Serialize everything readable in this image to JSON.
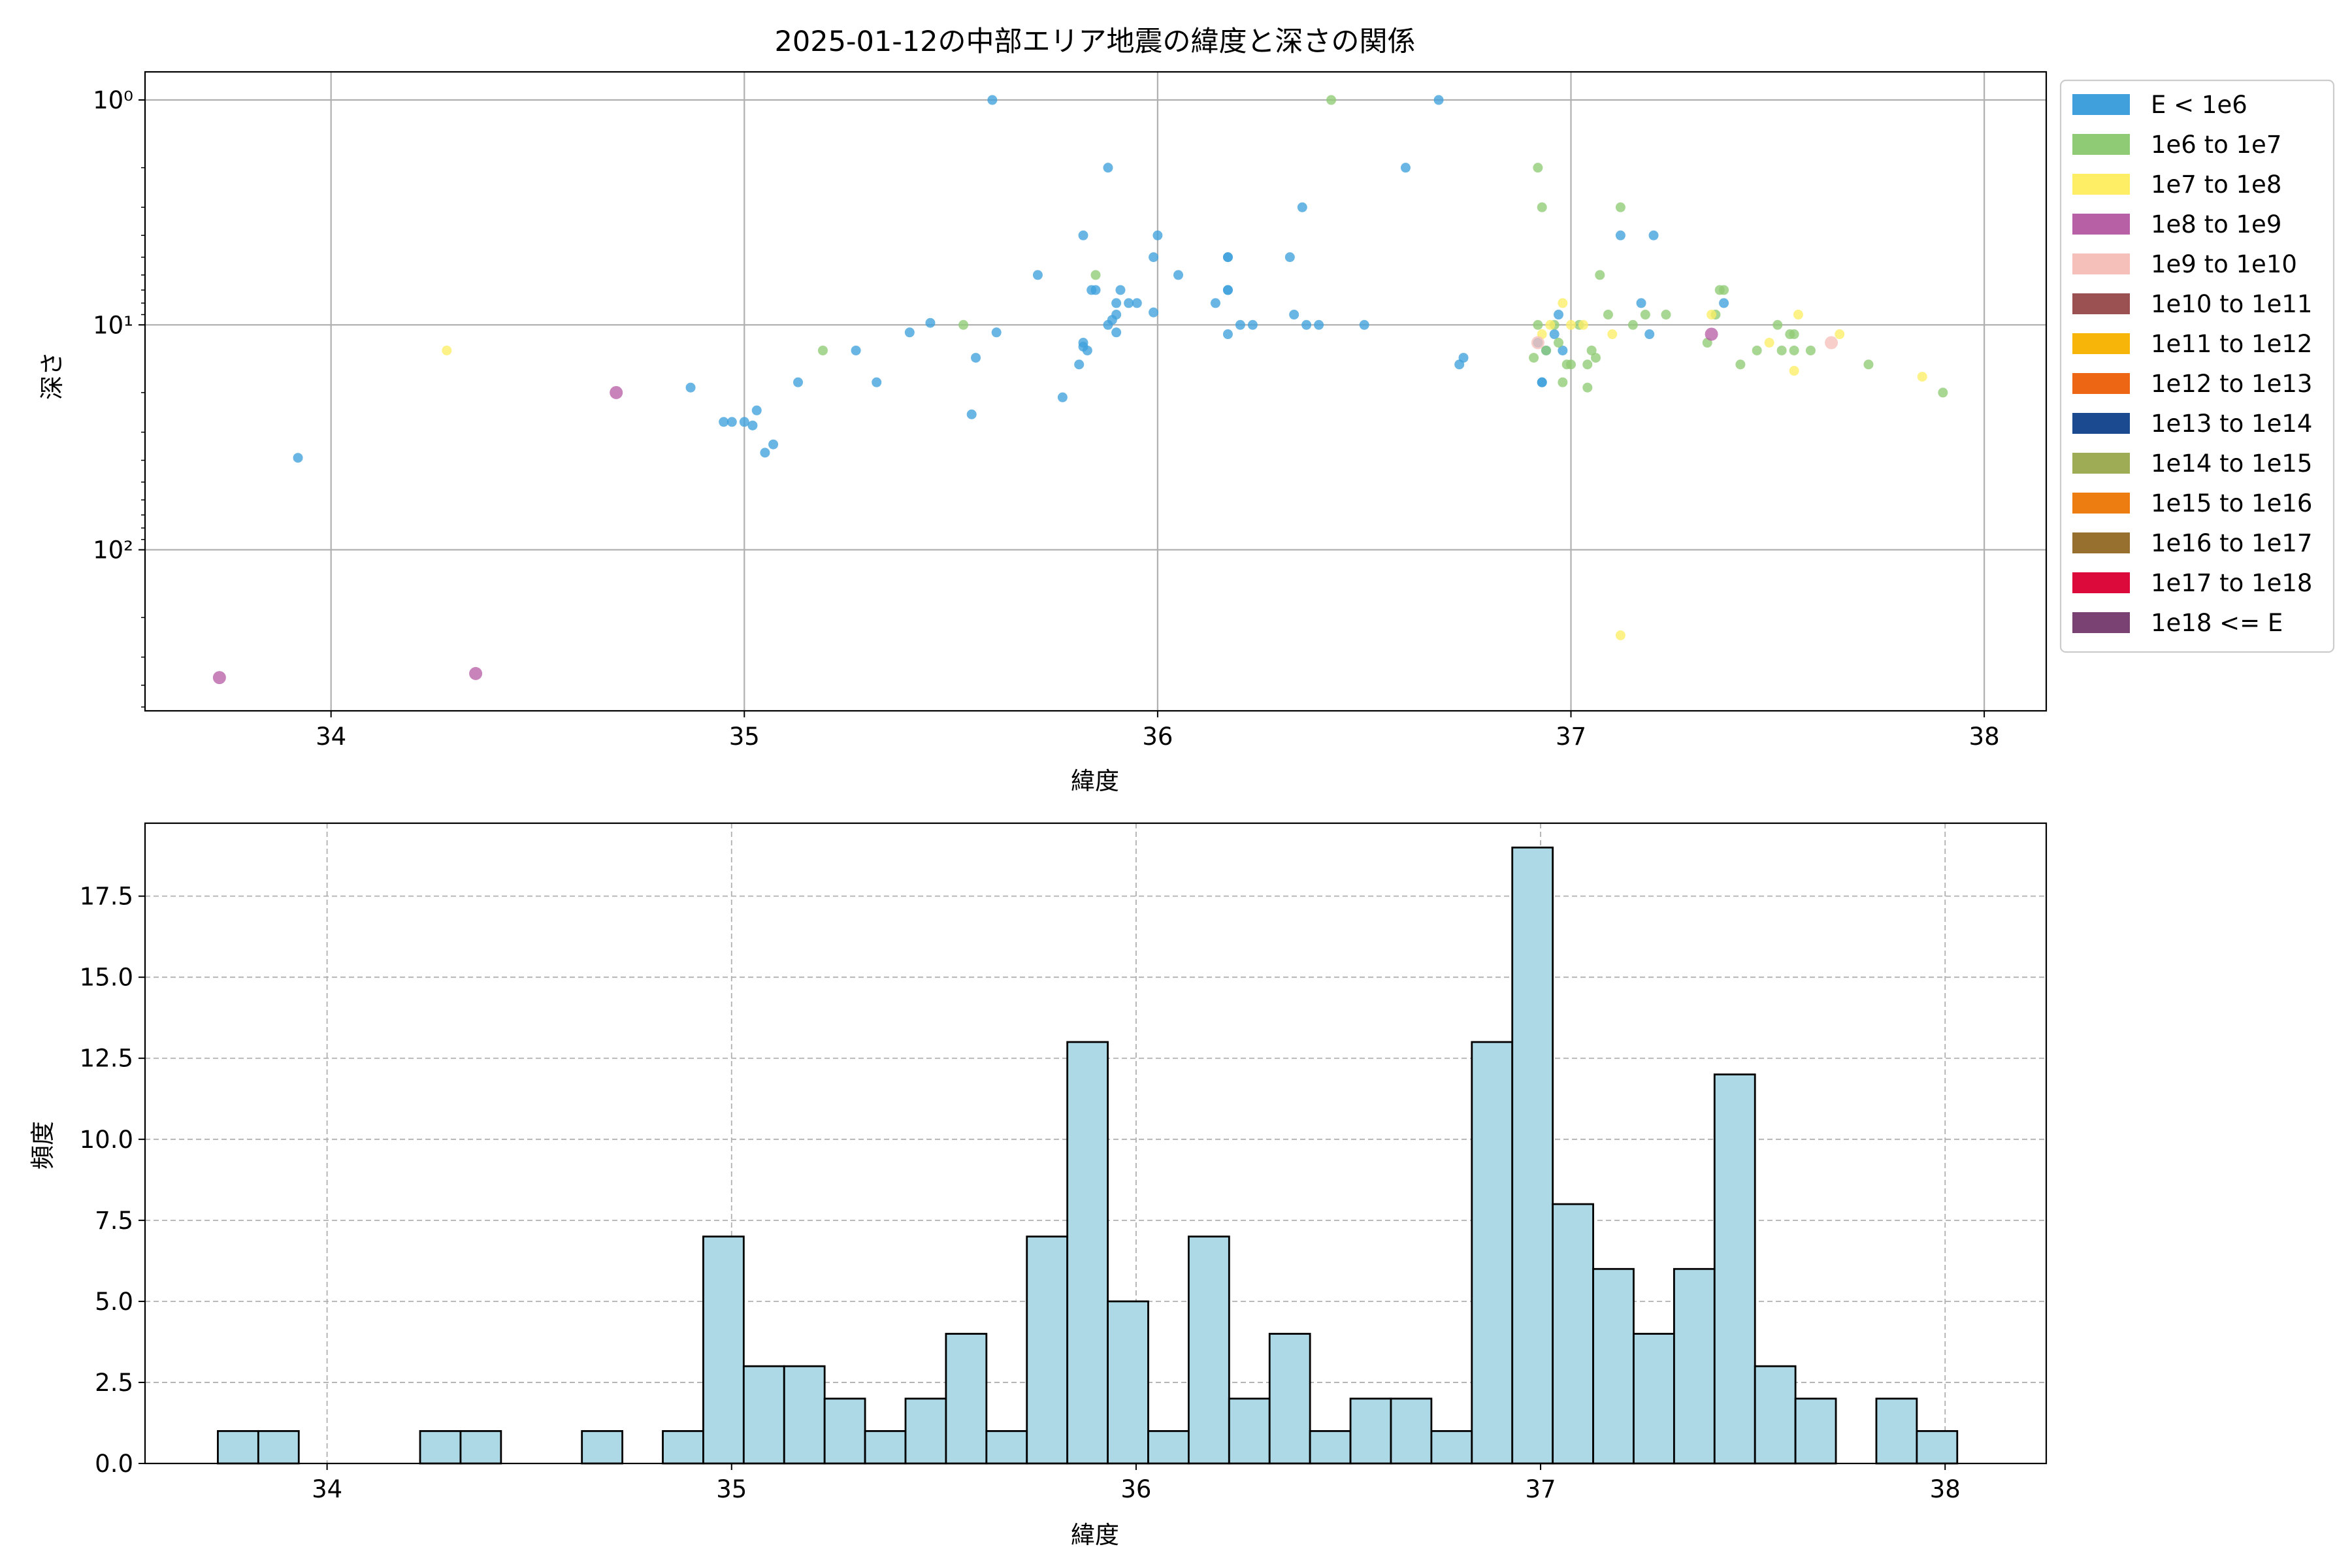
{
  "figure": {
    "title": "2025-01-12の中部エリア地震の緯度と深さの関係"
  },
  "colors": {
    "hist_fill": "#add8e6",
    "hist_edge": "#000000",
    "grid": "#b0b0b0"
  },
  "legend": [
    {
      "label": "E < 1e6",
      "color": "#3fa0dc"
    },
    {
      "label": "1e6 to 1e7",
      "color": "#8fca75"
    },
    {
      "label": "1e7 to 1e8",
      "color": "#fdee65"
    },
    {
      "label": "1e8 to 1e9",
      "color": "#b760a6"
    },
    {
      "label": "1e9 to 1e10",
      "color": "#f5c0ba"
    },
    {
      "label": "1e10 to 1e11",
      "color": "#9b5152"
    },
    {
      "label": "1e11 to 1e12",
      "color": "#f8b509"
    },
    {
      "label": "1e12 to 1e13",
      "color": "#ec6613"
    },
    {
      "label": "1e13 to 1e14",
      "color": "#1b4a91"
    },
    {
      "label": "1e14 to 1e15",
      "color": "#9dac55"
    },
    {
      "label": "1e15 to 1e16",
      "color": "#ed7d11"
    },
    {
      "label": "1e16 to 1e17",
      "color": "#976f2f"
    },
    {
      "label": "1e17 to 1e18",
      "color": "#dc0a3a"
    },
    {
      "label": "1e18 <= E",
      "color": "#7a4272"
    }
  ],
  "chart_data": [
    {
      "type": "scatter",
      "title": "2025-01-12の中部エリア地震の緯度と深さの関係",
      "xlabel": "緯度",
      "ylabel": "深さ",
      "xlim": [
        33.55,
        38.15
      ],
      "ylim": [
        520,
        0.75
      ],
      "yscale": "log",
      "y_inverted": true,
      "grid": true,
      "legend_position": "outside-right",
      "xticks": [
        34,
        35,
        36,
        37,
        38
      ],
      "yticks": [
        {
          "value": 1,
          "label": "10⁰"
        },
        {
          "value": 10,
          "label": "10¹"
        },
        {
          "value": 100,
          "label": "10²"
        }
      ],
      "series": [
        {
          "name": "E < 1e6",
          "color": "#3fa0dc",
          "points": [
            [
              33.92,
              39
            ],
            [
              34.87,
              19
            ],
            [
              34.95,
              27
            ],
            [
              34.97,
              27
            ],
            [
              35.0,
              27
            ],
            [
              35.02,
              28
            ],
            [
              35.03,
              24
            ],
            [
              35.05,
              37
            ],
            [
              35.07,
              34
            ],
            [
              35.13,
              18
            ],
            [
              35.27,
              13
            ],
            [
              35.32,
              18
            ],
            [
              35.4,
              10.8
            ],
            [
              35.45,
              9.8
            ],
            [
              35.55,
              25
            ],
            [
              35.56,
              14
            ],
            [
              35.6,
              1
            ],
            [
              35.61,
              10.8
            ],
            [
              35.71,
              6
            ],
            [
              35.77,
              21
            ],
            [
              35.81,
              15
            ],
            [
              35.82,
              12
            ],
            [
              35.82,
              12.5
            ],
            [
              35.82,
              4
            ],
            [
              35.83,
              13
            ],
            [
              35.84,
              7
            ],
            [
              35.85,
              7
            ],
            [
              35.88,
              2
            ],
            [
              35.88,
              10
            ],
            [
              35.89,
              9.5
            ],
            [
              35.9,
              8
            ],
            [
              35.9,
              10.8
            ],
            [
              35.9,
              9
            ],
            [
              35.91,
              7
            ],
            [
              35.93,
              8
            ],
            [
              35.95,
              8
            ],
            [
              35.99,
              5
            ],
            [
              35.99,
              8.8
            ],
            [
              36.0,
              4
            ],
            [
              36.05,
              6
            ],
            [
              36.14,
              8
            ],
            [
              36.17,
              5
            ],
            [
              36.17,
              5
            ],
            [
              36.17,
              7
            ],
            [
              36.17,
              7
            ],
            [
              36.17,
              11
            ],
            [
              36.2,
              10
            ],
            [
              36.23,
              10
            ],
            [
              36.32,
              5
            ],
            [
              36.33,
              9
            ],
            [
              36.35,
              3
            ],
            [
              36.36,
              10
            ],
            [
              36.39,
              10
            ],
            [
              36.5,
              10
            ],
            [
              36.6,
              2
            ],
            [
              36.68,
              1
            ],
            [
              36.73,
              15
            ],
            [
              36.74,
              14
            ],
            [
              36.92,
              12
            ],
            [
              36.93,
              18
            ],
            [
              36.93,
              18
            ],
            [
              36.94,
              13
            ],
            [
              36.96,
              11
            ],
            [
              36.97,
              9
            ],
            [
              36.98,
              13
            ],
            [
              37.12,
              4
            ],
            [
              37.17,
              8
            ],
            [
              37.19,
              11
            ],
            [
              37.2,
              4
            ],
            [
              37.37,
              8
            ]
          ]
        },
        {
          "name": "1e6 to 1e7",
          "color": "#8fca75",
          "points": [
            [
              35.19,
              13
            ],
            [
              35.53,
              10
            ],
            [
              35.85,
              6
            ],
            [
              36.42,
              1
            ],
            [
              36.91,
              14
            ],
            [
              36.92,
              2
            ],
            [
              36.93,
              3
            ],
            [
              36.92,
              10
            ],
            [
              36.94,
              13
            ],
            [
              36.96,
              10
            ],
            [
              36.97,
              12
            ],
            [
              36.98,
              18
            ],
            [
              36.99,
              15
            ],
            [
              37.0,
              15
            ],
            [
              37.02,
              10
            ],
            [
              37.04,
              15
            ],
            [
              37.04,
              19
            ],
            [
              37.05,
              13
            ],
            [
              37.06,
              14
            ],
            [
              37.07,
              6
            ],
            [
              37.09,
              9
            ],
            [
              37.12,
              3
            ],
            [
              37.15,
              10
            ],
            [
              37.18,
              9
            ],
            [
              37.23,
              9
            ],
            [
              37.33,
              12
            ],
            [
              37.35,
              9
            ],
            [
              37.36,
              7
            ],
            [
              37.37,
              7
            ],
            [
              37.41,
              15
            ],
            [
              37.45,
              13
            ],
            [
              37.5,
              10
            ],
            [
              37.51,
              13
            ],
            [
              37.53,
              11
            ],
            [
              37.54,
              11
            ],
            [
              37.54,
              13
            ],
            [
              37.58,
              13
            ],
            [
              37.72,
              15
            ],
            [
              37.9,
              20
            ]
          ]
        },
        {
          "name": "1e7 to 1e8",
          "color": "#fdee65",
          "points": [
            [
              34.28,
              13
            ],
            [
              36.93,
              11
            ],
            [
              36.95,
              10
            ],
            [
              36.98,
              8
            ],
            [
              37.0,
              10
            ],
            [
              37.03,
              10
            ],
            [
              37.1,
              11
            ],
            [
              37.12,
              240
            ],
            [
              37.34,
              9
            ],
            [
              37.48,
              12
            ],
            [
              37.54,
              16
            ],
            [
              37.55,
              9
            ],
            [
              37.65,
              11
            ],
            [
              37.85,
              17
            ]
          ]
        },
        {
          "name": "1e8 to 1e9",
          "color": "#b760a6",
          "points": [
            [
              33.73,
              370
            ],
            [
              34.35,
              355
            ],
            [
              34.69,
              20
            ],
            [
              37.34,
              11
            ]
          ]
        },
        {
          "name": "1e9 to 1e10",
          "color": "#f5c0ba",
          "points": [
            [
              36.92,
              12
            ],
            [
              37.63,
              12
            ]
          ]
        }
      ]
    },
    {
      "type": "bar",
      "subtype": "histogram",
      "xlabel": "緯度",
      "ylabel": "頻度",
      "xlim": [
        33.55,
        38.25
      ],
      "ylim": [
        0,
        19.75
      ],
      "grid": true,
      "grid_style": "dashed",
      "xticks": [
        34,
        35,
        36,
        37,
        38
      ],
      "yticks": [
        0.0,
        2.5,
        5.0,
        7.5,
        10.0,
        12.5,
        15.0,
        17.5
      ],
      "bin_start": 33.73,
      "bin_width": 0.1,
      "counts": [
        1,
        1,
        0,
        0,
        0,
        1,
        1,
        0,
        0,
        1,
        0,
        1,
        7,
        3,
        3,
        2,
        1,
        2,
        4,
        1,
        7,
        13,
        5,
        1,
        7,
        2,
        4,
        1,
        2,
        2,
        1,
        13,
        19,
        8,
        6,
        4,
        6,
        12,
        3,
        2,
        0,
        2,
        1
      ]
    }
  ]
}
